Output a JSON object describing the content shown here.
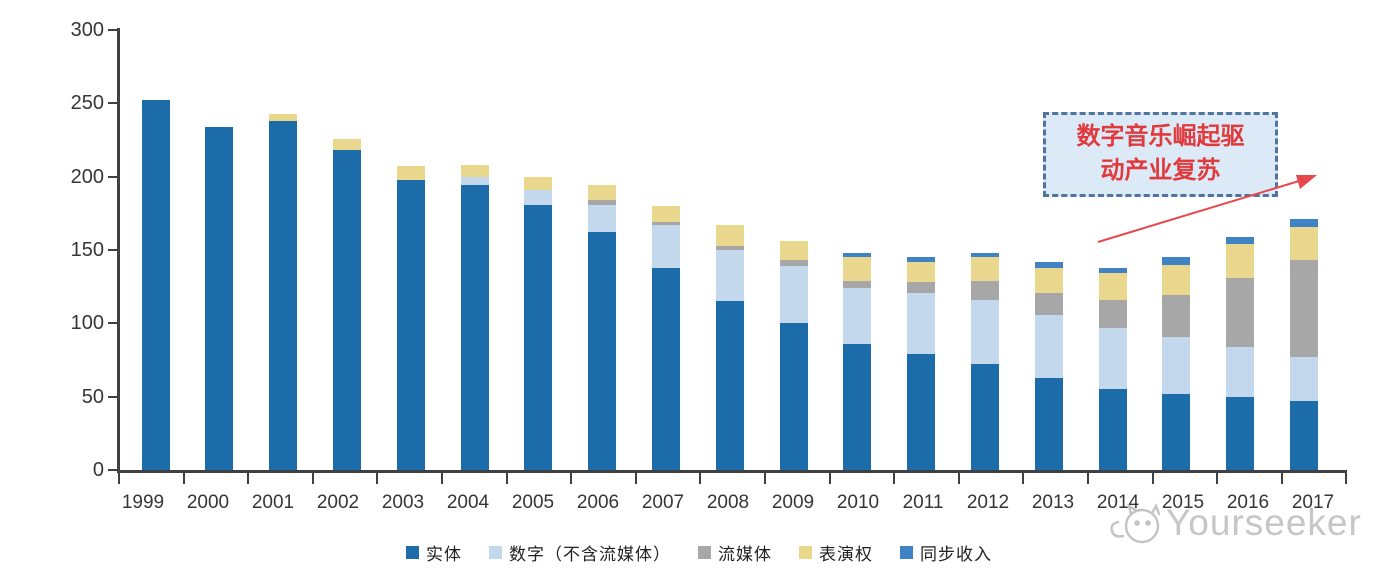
{
  "chart_data": {
    "type": "bar",
    "stacked": true,
    "title": "",
    "xlabel": "",
    "ylabel": "",
    "unit_note": "values read from axis, 0-300 scale",
    "categories": [
      "1999",
      "2000",
      "2001",
      "2002",
      "2003",
      "2004",
      "2005",
      "2006",
      "2007",
      "2008",
      "2009",
      "2010",
      "2011",
      "2012",
      "2013",
      "2014",
      "2015",
      "2016",
      "2017"
    ],
    "series": [
      {
        "id": "physical",
        "name": "实体",
        "color": "#1b6ca8",
        "values": [
          252,
          234,
          238,
          218,
          198,
          194,
          181,
          162,
          138,
          115,
          100,
          86,
          79,
          72,
          63,
          55,
          52,
          50,
          47
        ]
      },
      {
        "id": "digital",
        "name": "数字（不含流媒体）",
        "color": "#c3d8ed",
        "values": [
          0,
          0,
          0,
          0,
          0,
          6,
          10,
          19,
          29,
          35,
          39,
          38,
          42,
          44,
          43,
          42,
          39,
          34,
          30
        ]
      },
      {
        "id": "streaming",
        "name": "流媒体",
        "color": "#a7a7a7",
        "values": [
          0,
          0,
          0,
          0,
          0,
          0,
          0,
          3,
          2,
          3,
          4,
          5,
          7,
          13,
          15,
          19,
          28,
          47,
          66
        ]
      },
      {
        "id": "performance",
        "name": "表演权",
        "color": "#e9d78e",
        "values": [
          0,
          0,
          5,
          8,
          9,
          8,
          9,
          10,
          11,
          14,
          13,
          16,
          14,
          16,
          17,
          18,
          21,
          23,
          23
        ]
      },
      {
        "id": "sync",
        "name": "同步收入",
        "color": "#3f83c4",
        "values": [
          0,
          0,
          0,
          0,
          0,
          0,
          0,
          0,
          0,
          0,
          0,
          3,
          3,
          3,
          4,
          4,
          5,
          5,
          5
        ]
      }
    ],
    "ylim": [
      0,
      300
    ],
    "yticks": [
      0,
      50,
      100,
      150,
      200,
      250,
      300
    ],
    "legend_position": "bottom",
    "grid": false
  },
  "annotation": {
    "line1": "数字音乐崛起驱",
    "line2": "动产业复苏",
    "text_color": "#e13a3c",
    "box_fill": "#dce9f6",
    "box_border": "#51749e",
    "arrow_color": "#e8474b"
  },
  "watermark": {
    "text": "Yourseeker",
    "logo_icon": "yourseeker-cat-logo-icon",
    "color": "#c6c6c6"
  }
}
